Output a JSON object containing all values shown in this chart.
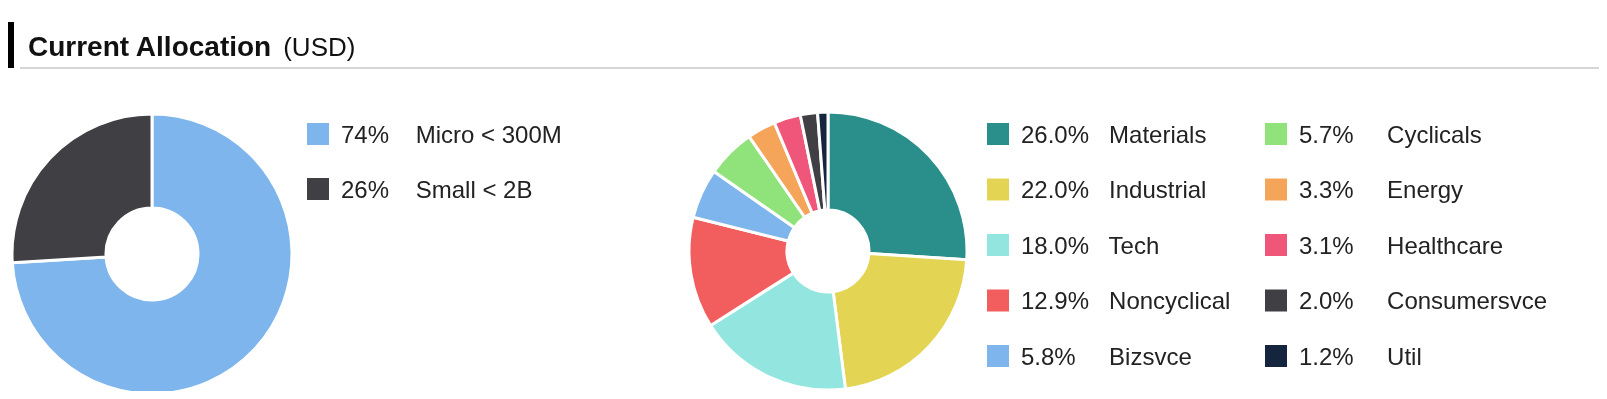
{
  "chart_data": [
    {
      "type": "donut",
      "title": "Current Allocation",
      "subtitle": "(USD)",
      "categories": [
        "Micro < 300M",
        "Small < 2B"
      ],
      "values": [
        74,
        26
      ],
      "value_labels": [
        "74%",
        "26%"
      ],
      "colors": [
        "#7eb5ec",
        "#3f3f44"
      ],
      "legend": "right"
    },
    {
      "type": "donut",
      "categories": [
        "Materials",
        "Industrial",
        "Tech",
        "Noncyclical",
        "Bizsvce",
        "Cyclicals",
        "Energy",
        "Healthcare",
        "Consumersvce",
        "Util"
      ],
      "values": [
        26.0,
        22.0,
        18.0,
        12.9,
        5.8,
        5.7,
        3.3,
        3.1,
        2.0,
        1.2
      ],
      "value_labels": [
        "26.0%",
        "22.0%",
        "18.0%",
        "12.9%",
        "5.8%",
        "5.7%",
        "3.3%",
        "3.1%",
        "2.0%",
        "1.2%"
      ],
      "colors": [
        "#2a8f8a",
        "#e3d553",
        "#93e6df",
        "#f25e5e",
        "#7eb5ec",
        "#90e27a",
        "#f5a55a",
        "#f0557a",
        "#3f3f44",
        "#14253d"
      ],
      "legend": "right"
    }
  ]
}
